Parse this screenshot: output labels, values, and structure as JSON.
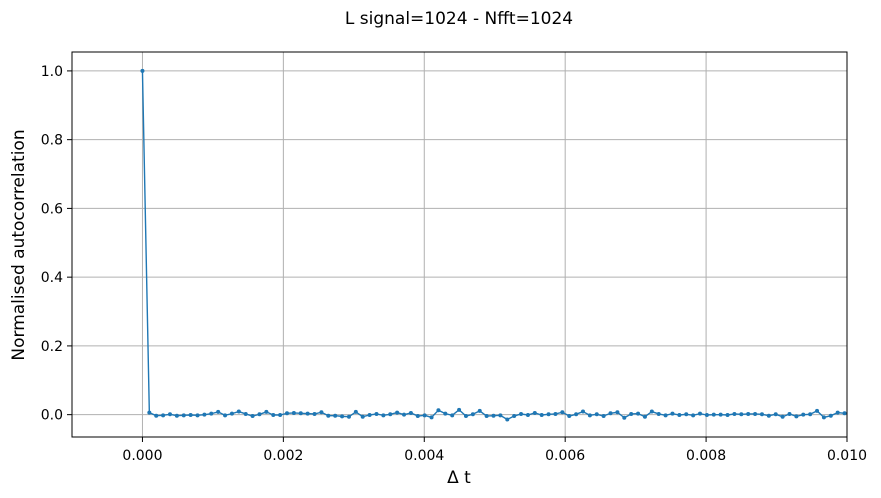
{
  "chart_data": {
    "type": "line",
    "title": "L signal=1024 - Nfft=1024",
    "xlabel": "Δ t",
    "ylabel": "Normalised autocorrelation",
    "xlim": [
      -0.001,
      0.01
    ],
    "ylim": [
      -0.065,
      1.055
    ],
    "xticks": [
      0.0,
      0.002,
      0.004,
      0.006,
      0.008,
      0.01
    ],
    "xtick_labels": [
      "0.000",
      "0.002",
      "0.004",
      "0.006",
      "0.008",
      "0.010"
    ],
    "yticks": [
      0.0,
      0.2,
      0.4,
      0.6,
      0.8,
      1.0
    ],
    "ytick_labels": [
      "0.0",
      "0.2",
      "0.4",
      "0.6",
      "0.8",
      "1.0"
    ],
    "grid": true,
    "marker": "dot",
    "color": "#1f77b4",
    "x_step": 9.77e-05,
    "values": [
      1.0,
      0.006,
      -0.003,
      -0.002,
      0.001,
      -0.003,
      -0.002,
      -0.001,
      -0.002,
      0.0,
      0.003,
      0.008,
      -0.002,
      0.003,
      0.009,
      0.002,
      -0.004,
      0.001,
      0.008,
      -0.001,
      -0.001,
      0.004,
      0.005,
      0.004,
      0.003,
      0.002,
      0.007,
      -0.003,
      -0.003,
      -0.005,
      -0.006,
      0.008,
      -0.006,
      -0.001,
      0.002,
      -0.002,
      0.001,
      0.006,
      0.0,
      0.005,
      -0.004,
      -0.002,
      -0.008,
      0.013,
      0.003,
      -0.002,
      0.014,
      -0.004,
      0.001,
      0.011,
      -0.004,
      -0.003,
      -0.002,
      -0.014,
      -0.004,
      0.002,
      -0.001,
      0.005,
      -0.001,
      0.001,
      0.002,
      0.007,
      -0.004,
      0.001,
      0.009,
      -0.002,
      0.001,
      -0.004,
      0.004,
      0.007,
      -0.009,
      0.002,
      0.003,
      -0.006,
      0.009,
      0.002,
      -0.002,
      0.003,
      -0.001,
      0.001,
      -0.002,
      0.003,
      -0.001,
      0.0,
      0.0,
      -0.001,
      0.002,
      0.001,
      0.002,
      0.002,
      0.001,
      -0.003,
      0.001,
      -0.006,
      0.002,
      -0.005,
      0.0,
      0.001,
      0.011,
      -0.008,
      -0.003,
      0.006,
      0.004
    ]
  }
}
